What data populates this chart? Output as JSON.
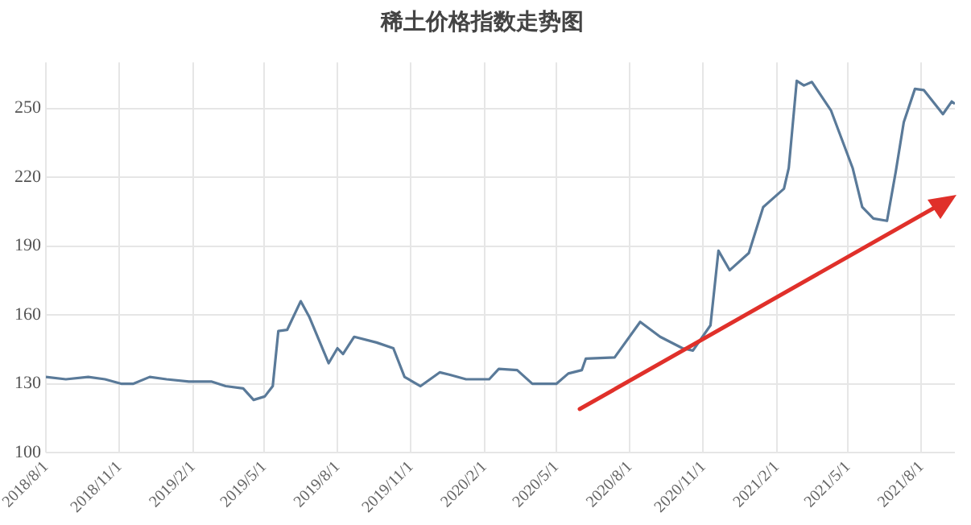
{
  "chart_data": {
    "type": "line",
    "title": "稀土价格指数走势图",
    "x": [
      "2018-08-01",
      "2018-08-26",
      "2018-09-23",
      "2018-10-14",
      "2018-11-04",
      "2018-11-18",
      "2018-12-09",
      "2018-12-30",
      "2019-01-27",
      "2019-02-24",
      "2019-03-14",
      "2019-04-05",
      "2019-04-18",
      "2019-05-02",
      "2019-05-12",
      "2019-05-19",
      "2019-05-30",
      "2019-06-16",
      "2019-06-27",
      "2019-07-21",
      "2019-08-01",
      "2019-08-08",
      "2019-08-22",
      "2019-09-19",
      "2019-10-10",
      "2019-10-24",
      "2019-11-13",
      "2019-12-07",
      "2019-12-19",
      "2020-01-09",
      "2020-02-07",
      "2020-02-19",
      "2020-03-13",
      "2020-04-01",
      "2020-05-01",
      "2020-05-16",
      "2020-06-02",
      "2020-06-07",
      "2020-07-13",
      "2020-08-14",
      "2020-09-08",
      "2020-10-06",
      "2020-10-19",
      "2020-11-10",
      "2020-11-20",
      "2020-12-04",
      "2020-12-28",
      "2021-01-15",
      "2021-02-10",
      "2021-02-16",
      "2021-02-26",
      "2021-03-07",
      "2021-03-17",
      "2021-04-10",
      "2021-05-07",
      "2021-05-19",
      "2021-06-02",
      "2021-06-19",
      "2021-06-30",
      "2021-07-10",
      "2021-07-24",
      "2021-08-04",
      "2021-08-28",
      "2021-09-08",
      "2021-09-12"
    ],
    "series": [
      {
        "color": "#5a7a99",
        "values": [
          133,
          132,
          133,
          132,
          130,
          130,
          133,
          132,
          131,
          131,
          129,
          128,
          123,
          124.5,
          129,
          153,
          153.5,
          166,
          159,
          139,
          145.5,
          143,
          150.5,
          148,
          145.5,
          133,
          129,
          135,
          134,
          132,
          132,
          136.5,
          136,
          130,
          130,
          134.5,
          136,
          141,
          141.5,
          157,
          150.5,
          145.5,
          144.5,
          155.5,
          188,
          179.5,
          187,
          207,
          215,
          224,
          262,
          260,
          261.5,
          249,
          224,
          207,
          202,
          201,
          222.5,
          244,
          258.5,
          258,
          247.5,
          253,
          252
        ]
      }
    ],
    "xlim": [
      "2018-08-01",
      "2021-09-12"
    ],
    "xticks": [
      {
        "value": "2018-08-01",
        "label": "2018/8/1"
      },
      {
        "value": "2018-11-01",
        "label": "2018/11/1"
      },
      {
        "value": "2019-02-01",
        "label": "2019/2/1"
      },
      {
        "value": "2019-05-01",
        "label": "2019/5/1"
      },
      {
        "value": "2019-08-01",
        "label": "2019/8/1"
      },
      {
        "value": "2019-11-01",
        "label": "2019/11/1"
      },
      {
        "value": "2020-02-01",
        "label": "2020/2/1"
      },
      {
        "value": "2020-05-01",
        "label": "2020/5/1"
      },
      {
        "value": "2020-08-01",
        "label": "2020/8/1"
      },
      {
        "value": "2020-11-01",
        "label": "2020/11/1"
      },
      {
        "value": "2021-02-01",
        "label": "2021/2/1"
      },
      {
        "value": "2021-05-01",
        "label": "2021/5/1"
      },
      {
        "value": "2021-08-01",
        "label": "2021/8/1"
      }
    ],
    "ylim": [
      100,
      270
    ],
    "yticks": [
      100,
      130,
      160,
      190,
      220,
      250
    ],
    "grid": true,
    "marker": "none",
    "line_style": "solid"
  }
}
